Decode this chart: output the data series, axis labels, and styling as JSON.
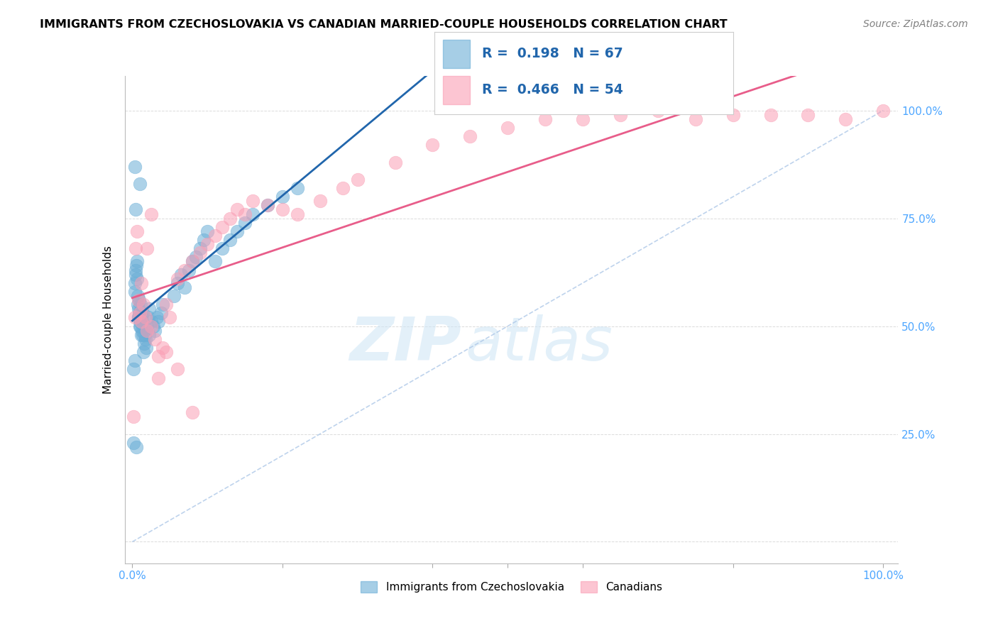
{
  "title": "IMMIGRANTS FROM CZECHOSLOVAKIA VS CANADIAN MARRIED-COUPLE HOUSEHOLDS CORRELATION CHART",
  "source": "Source: ZipAtlas.com",
  "ylabel": "Married-couple Households",
  "legend_label1": "Immigrants from Czechoslovakia",
  "legend_label2": "Canadians",
  "R1": 0.198,
  "N1": 67,
  "R2": 0.466,
  "N2": 54,
  "color_blue": "#6baed6",
  "color_pink": "#fa9fb5",
  "color_blue_line": "#2166ac",
  "color_pink_line": "#e85d8a",
  "color_diag": "#aec8e8",
  "blue_x": [
    0.002,
    0.005,
    0.008,
    0.003,
    0.003,
    0.004,
    0.004,
    0.005,
    0.006,
    0.006,
    0.007,
    0.007,
    0.008,
    0.008,
    0.009,
    0.009,
    0.01,
    0.01,
    0.011,
    0.011,
    0.012,
    0.012,
    0.013,
    0.013,
    0.014,
    0.014,
    0.015,
    0.015,
    0.016,
    0.017,
    0.018,
    0.019,
    0.02,
    0.021,
    0.022,
    0.022,
    0.025,
    0.028,
    0.03,
    0.033,
    0.035,
    0.038,
    0.04,
    0.055,
    0.06,
    0.065,
    0.07,
    0.075,
    0.08,
    0.085,
    0.09,
    0.095,
    0.1,
    0.11,
    0.12,
    0.13,
    0.14,
    0.15,
    0.16,
    0.18,
    0.2,
    0.22,
    0.01,
    0.003,
    0.004,
    0.003,
    0.002
  ],
  "blue_y": [
    0.23,
    0.22,
    0.52,
    0.58,
    0.6,
    0.62,
    0.63,
    0.64,
    0.65,
    0.61,
    0.55,
    0.57,
    0.52,
    0.54,
    0.56,
    0.53,
    0.51,
    0.5,
    0.55,
    0.5,
    0.48,
    0.52,
    0.49,
    0.51,
    0.53,
    0.48,
    0.5,
    0.44,
    0.46,
    0.48,
    0.47,
    0.45,
    0.5,
    0.52,
    0.54,
    0.48,
    0.51,
    0.5,
    0.49,
    0.52,
    0.51,
    0.53,
    0.55,
    0.57,
    0.6,
    0.62,
    0.59,
    0.63,
    0.65,
    0.66,
    0.68,
    0.7,
    0.72,
    0.65,
    0.68,
    0.7,
    0.72,
    0.74,
    0.76,
    0.78,
    0.8,
    0.82,
    0.83,
    0.87,
    0.77,
    0.42,
    0.4
  ],
  "pink_x": [
    0.002,
    0.003,
    0.004,
    0.006,
    0.008,
    0.01,
    0.012,
    0.015,
    0.018,
    0.02,
    0.025,
    0.03,
    0.035,
    0.04,
    0.045,
    0.05,
    0.06,
    0.07,
    0.08,
    0.09,
    0.1,
    0.11,
    0.12,
    0.13,
    0.14,
    0.15,
    0.16,
    0.18,
    0.2,
    0.22,
    0.25,
    0.28,
    0.3,
    0.35,
    0.4,
    0.45,
    0.5,
    0.55,
    0.6,
    0.65,
    0.7,
    0.75,
    0.8,
    0.85,
    0.9,
    0.95,
    1.0,
    0.012,
    0.02,
    0.025,
    0.035,
    0.045,
    0.06,
    0.08
  ],
  "pink_y": [
    0.29,
    0.52,
    0.68,
    0.72,
    0.56,
    0.53,
    0.51,
    0.55,
    0.52,
    0.49,
    0.5,
    0.47,
    0.43,
    0.45,
    0.55,
    0.52,
    0.61,
    0.63,
    0.65,
    0.67,
    0.69,
    0.71,
    0.73,
    0.75,
    0.77,
    0.76,
    0.79,
    0.78,
    0.77,
    0.76,
    0.79,
    0.82,
    0.84,
    0.88,
    0.92,
    0.94,
    0.96,
    0.98,
    0.98,
    0.99,
    1.0,
    0.98,
    0.99,
    0.99,
    0.99,
    0.98,
    1.0,
    0.6,
    0.68,
    0.76,
    0.38,
    0.44,
    0.4,
    0.3
  ]
}
